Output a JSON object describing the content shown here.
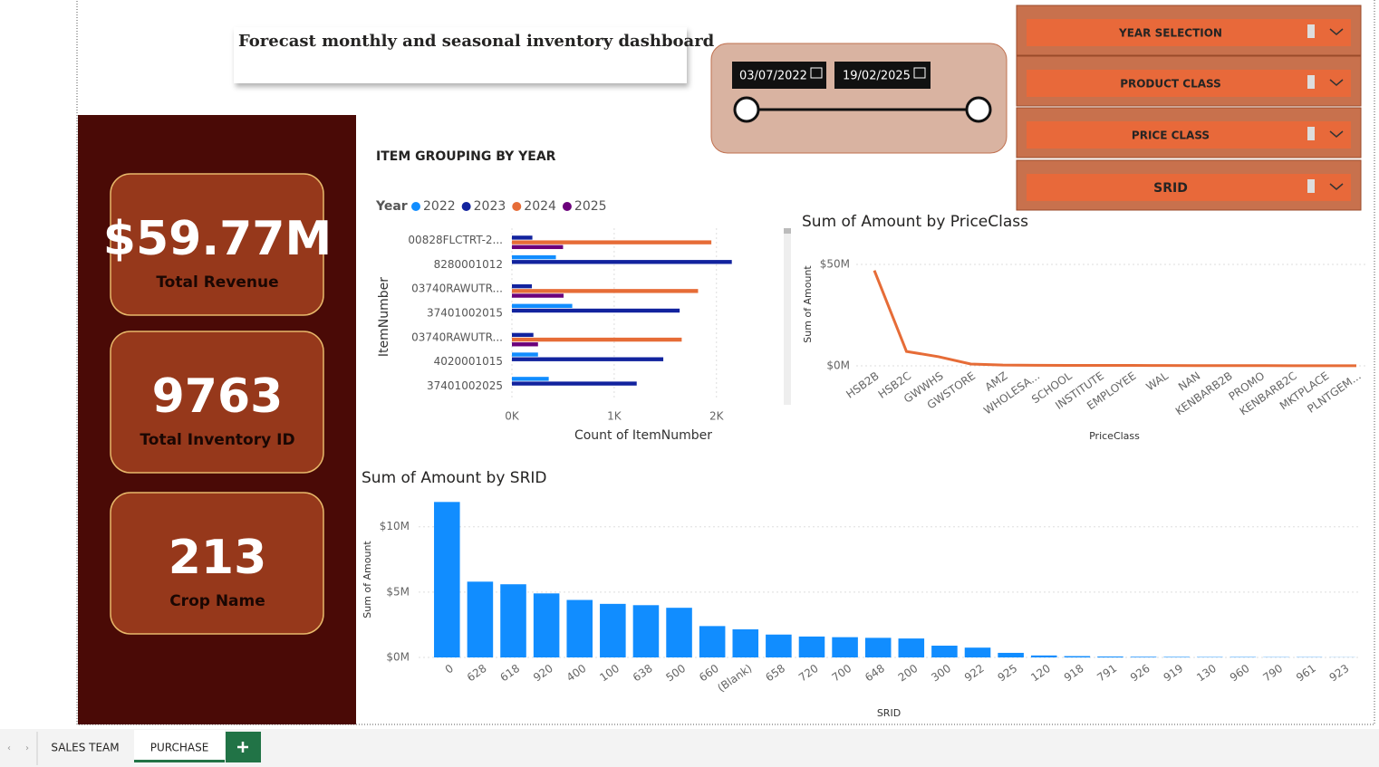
{
  "header": {
    "title": "Forecast monthly and seasonal inventory dashboard"
  },
  "kpis": [
    {
      "value": "$59.77M",
      "label": "Total Revenue"
    },
    {
      "value": "9763",
      "label": "Total Inventory ID"
    },
    {
      "value": "213",
      "label": "Crop Name"
    }
  ],
  "date_slicer": {
    "start": "03/07/2022",
    "end": "19/02/2025"
  },
  "slicers": [
    "YEAR SELECTION",
    "PRODUCT CLASS",
    "PRICE CLASS",
    "SRID"
  ],
  "tabs": [
    "SALES TEAM",
    "PURCHASE"
  ],
  "chart_data": [
    {
      "type": "hbar",
      "title": "ITEM GROUPING BY YEAR",
      "legend_title": "Year",
      "categories": [
        "00828FLCTRT-2...",
        "8280001012",
        "03740RAWUTR...",
        "37401002015",
        "03740RAWUTR...",
        "4020001015",
        "37401002025"
      ],
      "series": [
        {
          "name": "2022",
          "color": "#118dff",
          "values": [
            null,
            430,
            null,
            590,
            null,
            255,
            360
          ]
        },
        {
          "name": "2023",
          "color": "#12239e",
          "values": [
            200,
            2150,
            195,
            1640,
            210,
            1480,
            1220
          ]
        },
        {
          "name": "2024",
          "color": "#e66c37",
          "values": [
            1950,
            null,
            1820,
            null,
            1660,
            null,
            null
          ]
        },
        {
          "name": "2025",
          "color": "#6b007b",
          "values": [
            500,
            null,
            505,
            null,
            255,
            null,
            null
          ]
        }
      ],
      "xlim": [
        0,
        2250
      ],
      "xticks": [
        {
          "value": 0,
          "label": "0K"
        },
        {
          "value": 1000,
          "label": "1K"
        },
        {
          "value": 2000,
          "label": "2K"
        }
      ],
      "x_label": "Count of ItemNumber",
      "y_label": "ItemNumber",
      "grid": true
    },
    {
      "type": "line",
      "title": "Sum of Amount by PriceClass",
      "color": "#e66c37",
      "categories": [
        "HSB2B",
        "HSB2C",
        "GWWHS",
        "GWSTORE",
        "AMZ",
        "WHOLESA...",
        "SCHOOL",
        "INSTITUTE",
        "EMPLOYEE",
        "WAL",
        "NAN",
        "KENBARB2B",
        "PROMO",
        "KENBARB2C",
        "MKTPLACE",
        "PLNTGEM..."
      ],
      "values": [
        47,
        7.1,
        4.5,
        0.9,
        0.4,
        0.3,
        0.25,
        0.2,
        0.2,
        0.15,
        0.1,
        0.1,
        0.1,
        0.05,
        0.05,
        0.05
      ],
      "ylim": [
        0,
        52
      ],
      "yticks": [
        {
          "value": 0,
          "label": "$0M"
        },
        {
          "value": 50,
          "label": "$50M"
        }
      ],
      "x_label": "PriceClass",
      "y_label": "Sum of Amount",
      "grid": true
    },
    {
      "type": "bar",
      "title": "Sum of Amount by SRID",
      "color": "#118dff",
      "categories": [
        "0",
        "628",
        "618",
        "920",
        "400",
        "100",
        "638",
        "500",
        "660",
        "(Blank)",
        "658",
        "720",
        "700",
        "648",
        "200",
        "300",
        "922",
        "925",
        "120",
        "918",
        "791",
        "926",
        "919",
        "130",
        "960",
        "790",
        "961",
        "923"
      ],
      "values": [
        11.9,
        5.8,
        5.6,
        4.9,
        4.4,
        4.1,
        4.0,
        3.8,
        2.4,
        2.15,
        1.75,
        1.6,
        1.55,
        1.5,
        1.45,
        0.9,
        0.75,
        0.35,
        0.15,
        0.1,
        0.07,
        0.05,
        0.04,
        0.03,
        0.03,
        0.02,
        0.02,
        0.01
      ],
      "ylim": [
        0,
        12.2
      ],
      "yticks": [
        {
          "value": 0,
          "label": "$0M"
        },
        {
          "value": 5,
          "label": "$5M"
        },
        {
          "value": 10,
          "label": "$10M"
        }
      ],
      "x_label": "SRID",
      "y_label": "Sum of Amount",
      "grid": true
    }
  ]
}
